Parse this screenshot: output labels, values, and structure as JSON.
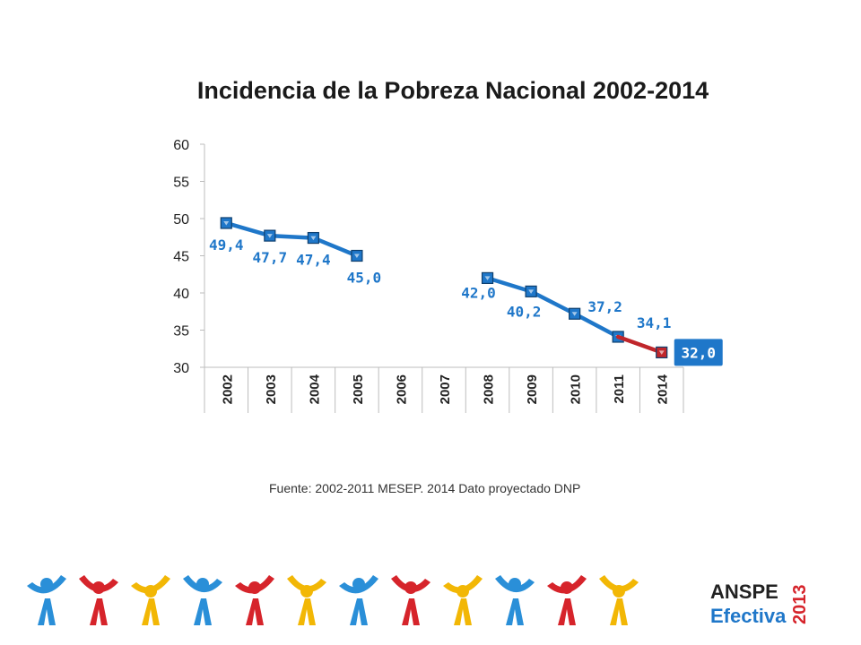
{
  "chart_data": {
    "type": "line",
    "title": "Incidencia de la Pobreza Nacional 2002-2014",
    "xlabel": "",
    "ylabel": "",
    "categories": [
      "2002",
      "2003",
      "2004",
      "2005",
      "2006",
      "2007",
      "2008",
      "2009",
      "2010",
      "2011",
      "2014"
    ],
    "ylim": [
      30,
      60
    ],
    "yticks": [
      "30",
      "35",
      "40",
      "45",
      "50",
      "55",
      "60"
    ],
    "grid": false,
    "series": [
      {
        "color": "#1f77c9",
        "points": [
          {
            "x": "2002",
            "y": 49.4,
            "label": "49,4"
          },
          {
            "x": "2003",
            "y": 47.7,
            "label": "47,7"
          },
          {
            "x": "2004",
            "y": 47.4,
            "label": "47,4"
          },
          {
            "x": "2005",
            "y": 45.0,
            "label": "45,0"
          },
          {
            "x": "2008",
            "y": 42.0,
            "label": "42,0"
          },
          {
            "x": "2009",
            "y": 40.2,
            "label": "40,2"
          },
          {
            "x": "2010",
            "y": 37.2,
            "label": "37,2"
          },
          {
            "x": "2011",
            "y": 34.1,
            "label": "34,1"
          }
        ]
      },
      {
        "color": "#c0262b",
        "points": [
          {
            "x": "2011",
            "y": 34.1,
            "label": ""
          },
          {
            "x": "2014",
            "y": 32.0,
            "label": "32,0"
          }
        ]
      }
    ],
    "highlight": {
      "x": "2014",
      "y": 32.0,
      "label": "32,0",
      "background": "#1f77c9"
    }
  },
  "source_note": "Fuente: 2002-2011 MESEP. 2014 Dato proyectado DNP",
  "brand": {
    "line1": "ANSPE",
    "line2": "Efectiva",
    "year": "2013"
  },
  "colors": {
    "primary_blue": "#1f77c9",
    "projection_red": "#c0262b",
    "footer_palette": [
      "#2a8fd8",
      "#d6242b",
      "#f2b705"
    ]
  }
}
